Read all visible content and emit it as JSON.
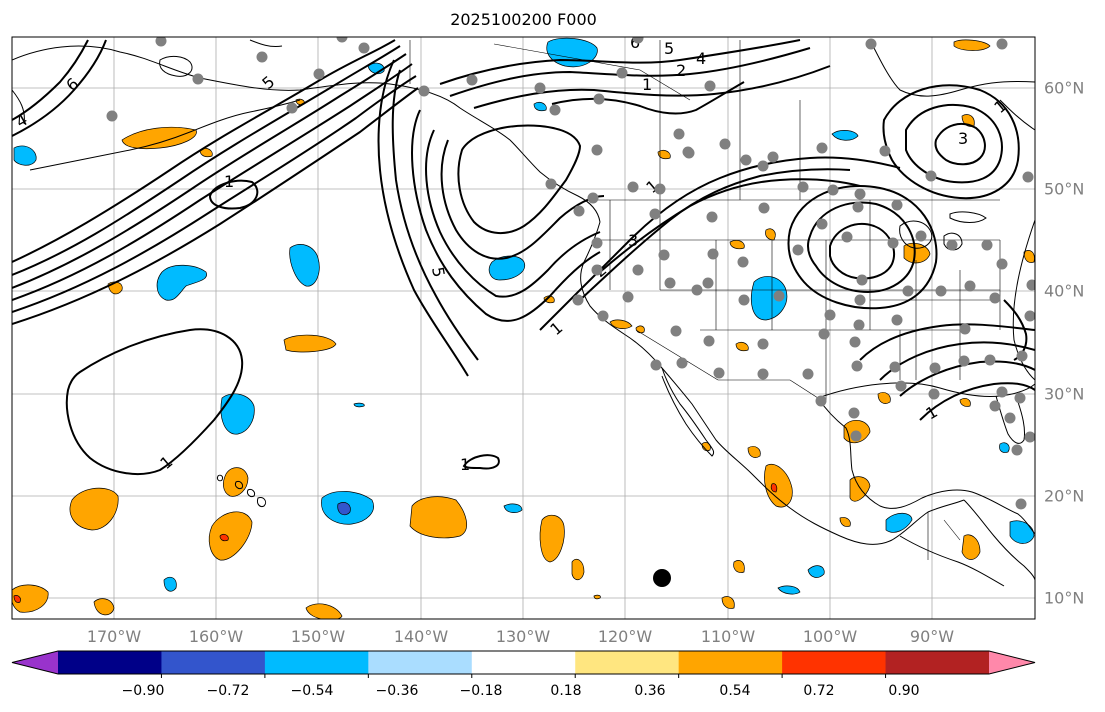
{
  "title": "2025100200 F000",
  "lon_labels": [
    "170°W",
    "160°W",
    "150°W",
    "140°W",
    "130°W",
    "120°W",
    "110°W",
    "100°W",
    "90°W"
  ],
  "lat_labels": [
    "60°N",
    "50°N",
    "40°N",
    "30°N",
    "20°N",
    "10°N"
  ],
  "colorbar": {
    "ticks": [
      "−0.90",
      "−0.72",
      "−0.54",
      "−0.36",
      "−0.18",
      "0.18",
      "0.36",
      "0.54",
      "0.72",
      "0.90"
    ],
    "colors": [
      "#9933cc",
      "#000088",
      "#3355cc",
      "#00bbff",
      "#aaddff",
      "#ffffff",
      "#ffe680",
      "#ffa500",
      "#ff3300",
      "#b22222",
      "#ff88aa"
    ]
  },
  "contour_labels": [
    "1",
    "5",
    "4",
    "6",
    "1",
    "5",
    "1",
    "3",
    "2",
    "1",
    "1",
    "6",
    "5",
    "4",
    "2",
    "1",
    "3",
    "1",
    "1"
  ],
  "map_colors": {
    "grid": "#888888",
    "contour": "#000000",
    "station_dot": "#808080",
    "negative_anomaly": "#00bbff",
    "positive_anomaly": "#ffa500",
    "strong_positive": "#ff3300"
  }
}
